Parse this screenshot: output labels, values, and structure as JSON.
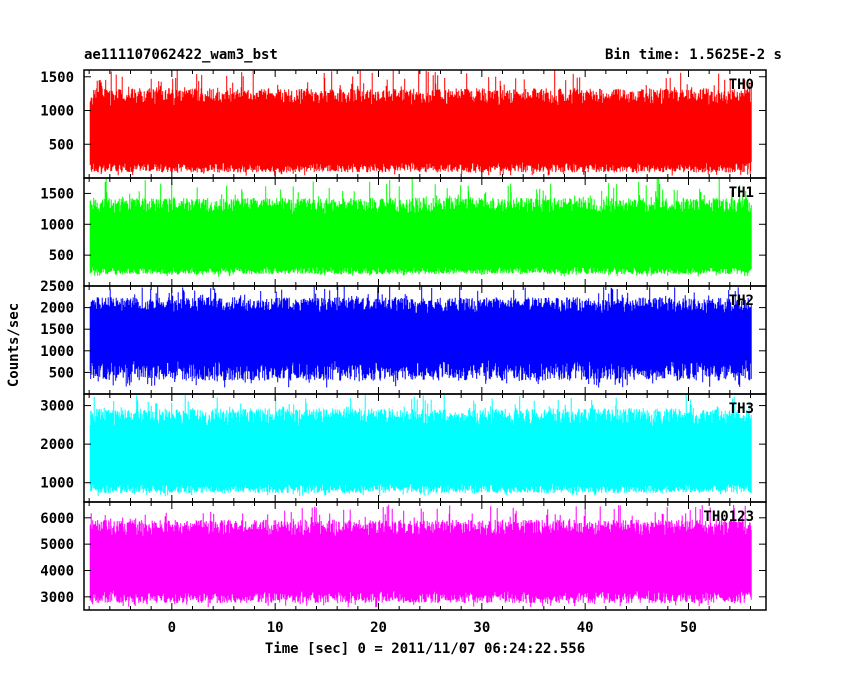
{
  "header": {
    "title_left": "ae111107062422_wam3_bst",
    "title_right": "Bin time: 1.5625E-2 s"
  },
  "chart_data": {
    "type": "line",
    "xlabel": "Time [sec] 0 = 2011/11/07 06:24:22.556",
    "ylabel": "Counts/sec",
    "xlim": [
      -8.5,
      57.5
    ],
    "x_ticks": [
      0,
      10,
      20,
      30,
      40,
      50
    ],
    "x_minor_step": 2,
    "data_range": [
      -7.9,
      56.1
    ],
    "panels": [
      {
        "name": "TH0",
        "color": "#ff0000",
        "ylim": [
          0,
          1600
        ],
        "y_ticks": [
          500,
          1000,
          1500
        ],
        "band": {
          "low": 160,
          "high": 1200,
          "lo_tail": 30,
          "hi_tail": 1600
        }
      },
      {
        "name": "TH1",
        "color": "#00ff00",
        "ylim": [
          0,
          1750
        ],
        "y_ticks": [
          500,
          1000,
          1500
        ],
        "band": {
          "low": 250,
          "high": 1300,
          "lo_tail": 150,
          "hi_tail": 1750
        }
      },
      {
        "name": "TH2",
        "color": "#0000ff",
        "ylim": [
          0,
          2500
        ],
        "y_ticks": [
          500,
          1000,
          1500,
          2000,
          2500
        ],
        "band": {
          "low": 550,
          "high": 2050,
          "lo_tail": 150,
          "hi_tail": 2500
        }
      },
      {
        "name": "TH3",
        "color": "#00ffff",
        "ylim": [
          500,
          3300
        ],
        "y_ticks": [
          1000,
          2000,
          3000
        ],
        "band": {
          "low": 850,
          "high": 2700,
          "lo_tail": 650,
          "hi_tail": 3300
        }
      },
      {
        "name": "TH0123",
        "color": "#ff00ff",
        "ylim": [
          2500,
          6600
        ],
        "y_ticks": [
          3000,
          4000,
          5000,
          6000
        ],
        "band": {
          "low": 3000,
          "high": 5600,
          "lo_tail": 2600,
          "hi_tail": 6500
        }
      }
    ]
  }
}
